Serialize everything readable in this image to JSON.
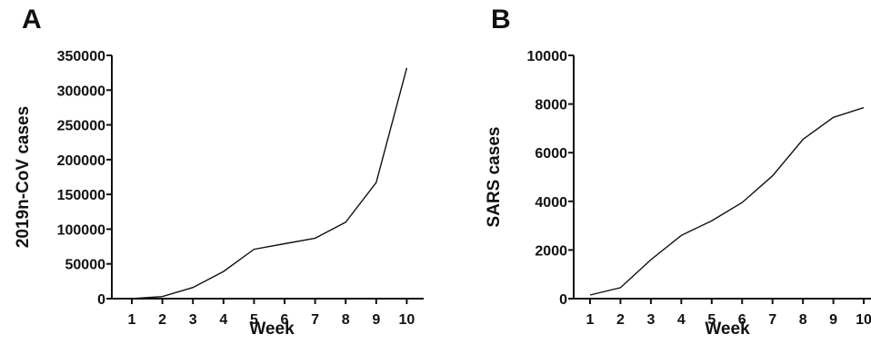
{
  "chart_data": [
    {
      "panel": "A",
      "type": "line",
      "xlabel": "Week",
      "ylabel": "2019n-CoV cases",
      "x": [
        1,
        2,
        3,
        4,
        5,
        6,
        7,
        8,
        9,
        10
      ],
      "xticks": [
        "1",
        "2",
        "3",
        "4",
        "5",
        "6",
        "7",
        "8",
        "9",
        "10"
      ],
      "yticks": [
        "0",
        "50000",
        "100000",
        "150000",
        "200000",
        "250000",
        "300000",
        "350000"
      ],
      "ylim": [
        0,
        350000
      ],
      "xlim": [
        0,
        10.5
      ],
      "grid": false,
      "series": [
        {
          "values": [
            0,
            3000,
            16000,
            39000,
            71000,
            79000,
            87000,
            110000,
            167000,
            332000
          ]
        }
      ]
    },
    {
      "panel": "B",
      "type": "line",
      "xlabel": "Week",
      "ylabel": "SARS cases",
      "x": [
        1,
        2,
        3,
        4,
        5,
        6,
        7,
        8,
        9,
        10
      ],
      "xticks": [
        "1",
        "2",
        "3",
        "4",
        "5",
        "6",
        "7",
        "8",
        "9",
        "10"
      ],
      "yticks": [
        "0",
        "2000",
        "4000",
        "6000",
        "8000",
        "10000"
      ],
      "ylim": [
        0,
        10000
      ],
      "xlim": [
        0.5,
        10.5
      ],
      "grid": false,
      "series": [
        {
          "values": [
            150,
            450,
            1600,
            2600,
            3200,
            3950,
            5050,
            6550,
            7450,
            7850
          ]
        }
      ]
    }
  ]
}
